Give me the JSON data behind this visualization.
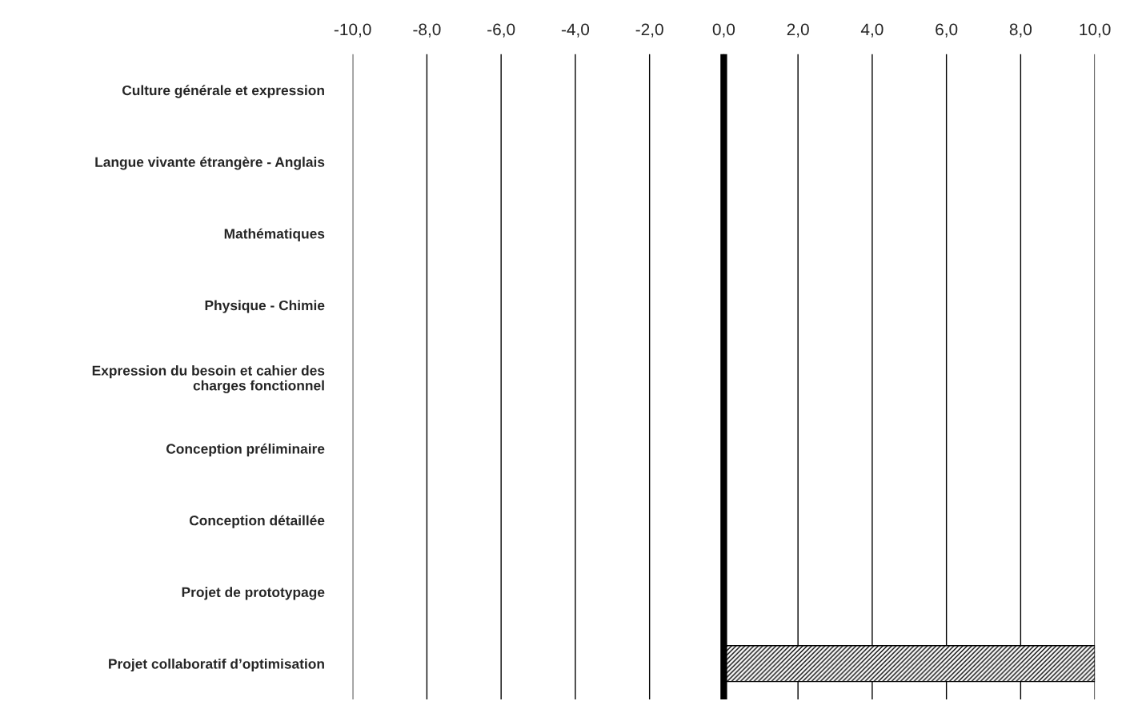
{
  "chart_data": {
    "type": "bar",
    "orientation": "horizontal",
    "categories": [
      "Culture générale et expression",
      "Langue vivante étrangère - Anglais",
      "Mathématiques",
      "Physique - Chimie",
      "Expression du besoin et cahier des\ncharges fonctionnel",
      "Conception préliminaire",
      "Conception détaillée",
      "Projet de prototypage",
      "Projet collaboratif d’optimisation"
    ],
    "values": [
      null,
      null,
      null,
      null,
      null,
      null,
      null,
      null,
      10
    ],
    "color": "#000000",
    "xlim": [
      -10,
      10
    ],
    "xticks": [
      {
        "value": -10,
        "label": "-10,0"
      },
      {
        "value": -8,
        "label": "-8,0"
      },
      {
        "value": -6,
        "label": "-6,0"
      },
      {
        "value": -4,
        "label": "-4,0"
      },
      {
        "value": -2,
        "label": "-2,0"
      },
      {
        "value": 0,
        "label": "0,0"
      },
      {
        "value": 2,
        "label": "2,0"
      },
      {
        "value": 4,
        "label": "4,0"
      },
      {
        "value": 6,
        "label": "6,0"
      },
      {
        "value": 8,
        "label": "8,0"
      },
      {
        "value": 10,
        "label": "10,0"
      }
    ],
    "grid": "x",
    "ref_lines": [
      {
        "axis": "x",
        "value": 0,
        "color": "#000000"
      }
    ]
  }
}
